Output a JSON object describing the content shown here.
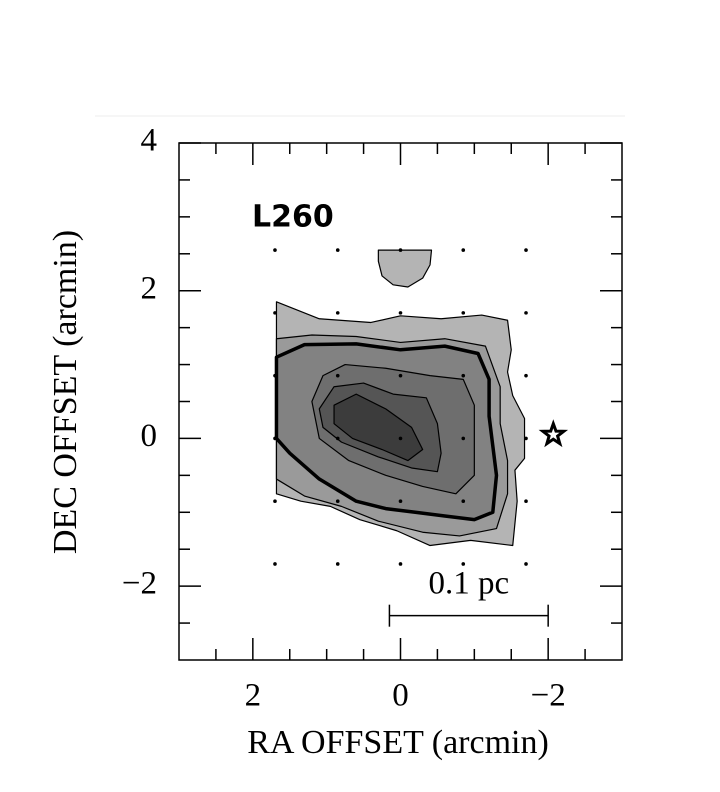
{
  "chart_data": {
    "type": "contour",
    "title": "L260",
    "xlabel": "RA OFFSET (arcmin)",
    "ylabel": "DEC OFFSET (arcmin)",
    "xlim": [
      3,
      -3
    ],
    "ylim": [
      -3,
      4
    ],
    "xticks": [
      2,
      0,
      {
        "value": -2,
        "label": "−2"
      }
    ],
    "yticks": [
      4,
      2,
      0,
      {
        "value": -2,
        "label": "−2"
      }
    ],
    "xminorticks": [
      2.5,
      1.5,
      1,
      0.5,
      -0.5,
      -1,
      -1.5,
      -2.5
    ],
    "yminorticks": [
      3.5,
      3,
      2.5,
      1.5,
      1,
      0.5,
      -0.5,
      -1,
      -1.5,
      -2.5
    ],
    "contours": [
      {
        "color": "#b4b4b4",
        "linewidth": 1.2,
        "x": [
          1.68,
          1.1,
          0.4,
          0,
          -0.55,
          -1.1,
          -1.45,
          -1.5,
          -1.45,
          -1.52,
          -1.68,
          -1.68,
          -1.55,
          -1.58,
          -1.52,
          -0.95,
          -0.4,
          0.05,
          0.55,
          0.95,
          1.35,
          1.68
        ],
        "y": [
          1.85,
          1.62,
          1.57,
          1.66,
          1.62,
          1.67,
          1.6,
          1.2,
          0.9,
          0.58,
          0.27,
          -0.27,
          -0.43,
          -0.85,
          -1.45,
          -1.38,
          -1.45,
          -1.25,
          -1.1,
          -0.92,
          -0.85,
          -0.75
        ]
      },
      {
        "color": "#b4b4b4",
        "linewidth": 1.2,
        "x": [
          0.3,
          -0.42,
          -0.4,
          -0.3,
          -0.1,
          0.1,
          0.25,
          0.3
        ],
        "y": [
          2.55,
          2.55,
          2.35,
          2.17,
          2.05,
          2.08,
          2.2,
          2.4
        ]
      },
      {
        "color": "#9a9a9a",
        "linewidth": 1.2,
        "x": [
          1.68,
          1.2,
          0.6,
          0,
          -0.6,
          -1.15,
          -1.35,
          -1.35,
          -1.45,
          -1.45,
          -1.3,
          -0.8,
          -0.3,
          0.3,
          0.8,
          1.3,
          1.68
        ],
        "y": [
          1.35,
          1.4,
          1.38,
          1.3,
          1.35,
          1.25,
          0.7,
          0.2,
          -0.3,
          -0.75,
          -1.22,
          -1.32,
          -1.27,
          -1.12,
          -0.92,
          -0.78,
          -0.55
        ]
      },
      {
        "color": "#828282",
        "linewidth": 3.5,
        "x": [
          1.68,
          1.3,
          0.6,
          0,
          -0.6,
          -1.05,
          -1.2,
          -1.2,
          -1.25,
          -1.3,
          -1.25,
          -1.0,
          -0.6,
          -0.2,
          0.2,
          0.6,
          1.1,
          1.5,
          1.68
        ],
        "y": [
          1.1,
          1.27,
          1.28,
          1.2,
          1.25,
          1.15,
          0.8,
          0.3,
          -0.1,
          -0.5,
          -1.0,
          -1.1,
          -1.05,
          -1.0,
          -0.95,
          -0.85,
          -0.55,
          -0.2,
          0.0
        ]
      },
      {
        "color": "#6e6e6e",
        "linewidth": 1.2,
        "x": [
          1.2,
          1.05,
          0.75,
          0.2,
          -0.4,
          -0.85,
          -1.0,
          -1.0,
          -1.0,
          -0.75,
          -0.3,
          0.2,
          0.7,
          1.1
        ],
        "y": [
          0.5,
          0.85,
          1.0,
          0.95,
          0.85,
          0.8,
          0.45,
          0.0,
          -0.5,
          -0.75,
          -0.65,
          -0.5,
          -0.3,
          0.0
        ]
      },
      {
        "color": "#555555",
        "linewidth": 1.2,
        "x": [
          1.1,
          0.9,
          0.5,
          0.1,
          -0.35,
          -0.5,
          -0.55,
          -0.5,
          -0.15,
          0.3,
          0.8,
          1.05
        ],
        "y": [
          0.4,
          0.7,
          0.75,
          0.6,
          0.55,
          0.2,
          -0.2,
          -0.45,
          -0.4,
          -0.25,
          -0.05,
          0.15
        ]
      },
      {
        "color": "#3c3c3c",
        "linewidth": 1.2,
        "x": [
          0.9,
          0.6,
          0.2,
          -0.15,
          -0.3,
          -0.1,
          0.25,
          0.65,
          0.9
        ],
        "y": [
          0.45,
          0.6,
          0.4,
          0.15,
          -0.15,
          -0.3,
          -0.15,
          0.0,
          0.2
        ]
      }
    ],
    "sample_x": [
      1.7,
      0.85,
      0,
      -0.85,
      -1.7
    ],
    "sample_y": [
      2.55,
      1.7,
      0.85,
      0,
      -0.85,
      -1.7
    ],
    "star": {
      "x": -2.07,
      "y": 0.05
    },
    "scalebar": {
      "label": "0.1 pc",
      "x": [
        0.15,
        -2
      ],
      "y": -2.4
    }
  }
}
